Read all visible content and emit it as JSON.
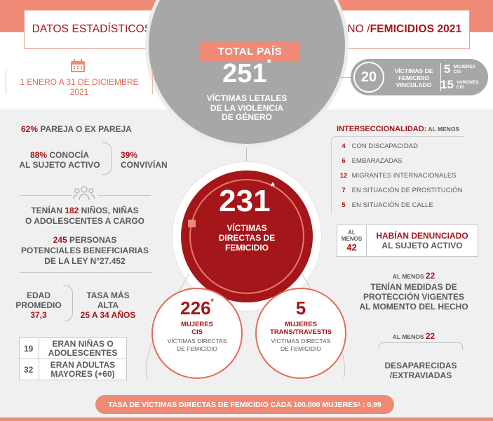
{
  "header": {
    "title_main": "DATOS ESTADÍSTICOS DEL SISTEMA DE JUSTICIA ARGENTINO / ",
    "title_bold": "FEMICIDIOS 2021"
  },
  "total": {
    "label": "TOTAL PAÍS",
    "number": "251",
    "asterisk": "*",
    "text_l1": "VÍCTIMAS LETALES",
    "text_l2": "DE LA VIOLENCIA",
    "text_l3": "DE GÉNERO"
  },
  "period": {
    "text": "1 ENERO A 31 DE DICIEMBRE 2021",
    "icon": "calendar-icon"
  },
  "vinculado": {
    "number": "20",
    "l1": "VÍCTIMAS DE",
    "l2": "FEMICIDIO",
    "l3": "VINCULADO",
    "mujeres_n": "5",
    "mujeres_l1": "MUJERES",
    "mujeres_l2": "CIS",
    "varones_n": "15",
    "varones_l1": "VARONES",
    "varones_l2": "CIS"
  },
  "left": {
    "pareja_pct": "62%",
    "pareja_txt": "PAREJA O EX PAREJA",
    "conocia_pct": "88%",
    "conocia_l1": " CONOCÍA",
    "conocia_l2": "AL SUJETO ACTIVO",
    "convivian_pct": "39%",
    "convivian_txt": "CONVIVÍAN",
    "ninos_pre": "TENÍAN ",
    "ninos_n": "182",
    "ninos_post": " NIÑOS, NIÑAS",
    "ninos_l2": "O ADOLESCENTES A CARGO",
    "benef_n": "245",
    "benef_l1": " PERSONAS",
    "benef_l2": "POTENCIALES BENEFICIARIAS",
    "benef_l3": "DE LA LEY N°27.452",
    "edad_l1": "EDAD",
    "edad_l2": "PROMEDIO",
    "edad_v": "37,3",
    "tasa_l1": "TASA MÁS",
    "tasa_l2": "ALTA",
    "tasa_v": "25 A 34 AÑOS",
    "table": [
      {
        "n": "19",
        "t1": "ERAN NIÑAS O",
        "t2": "ADOLESCENTES"
      },
      {
        "n": "32",
        "t1": "ERAN ADULTAS",
        "t2": "MAYORES (+60)"
      }
    ],
    "people_icon": "people-icon"
  },
  "center": {
    "number": "231",
    "asterisk": "*",
    "l1": "VÍCTIMAS",
    "l2": "DIRECTAS DE",
    "l3": "FEMICIDIO"
  },
  "cis": {
    "number": "226",
    "asterisk": "*",
    "l1": "MUJERES",
    "l2": "CIS",
    "s1": "VÍCTIMAS DIRECTAS",
    "s2": "DE FEMICIDIO"
  },
  "trans": {
    "number": "5",
    "l1": "MUJERES",
    "l2": "TRANS/TRAVESTIS",
    "s1": "VÍCTIMAS DIRECTAS",
    "s2": "DE FEMICIDIO"
  },
  "right": {
    "inter_title": "INTERSECCIONALIDAD:",
    "inter_suffix": " AL MENOS",
    "inter_items": [
      {
        "n": "4",
        "t": "CON DISCAPACIDAD"
      },
      {
        "n": "6",
        "t": "EMBARAZADAS"
      },
      {
        "n": "12",
        "t": "MIGRANTES INTERNACIONALES"
      },
      {
        "n": "7",
        "t": "EN SITUACIÓN DE PROSTITUCIÓN"
      },
      {
        "n": "5",
        "t": "EN SITUACIÓN DE CALLE"
      }
    ],
    "denun_al": "AL",
    "denun_menos": "MENOS",
    "denun_n": "42",
    "denun_l1": "HABÍAN DENUNCIADO",
    "denun_l2": "AL SUJETO ACTIVO",
    "medidas_pre": "AL MENOS ",
    "medidas_n": "22",
    "medidas_l1": "TENÍAN MEDIDAS DE",
    "medidas_l2": "PROTECCIÓN VIGENTES",
    "medidas_l3": "AL MOMENTO DEL HECHO",
    "desap_pre": "AL MENOS ",
    "desap_n": "22",
    "desap_l1": "DESAPARECIDAS",
    "desap_l2": "/EXTRAVIADAS"
  },
  "footer": {
    "text": "TASA DE VÍCTIMAS DIRECTAS DE FEMICIDIO CADA 100.000 MUJERES",
    "sup": "1",
    "value": ": 0,99"
  }
}
